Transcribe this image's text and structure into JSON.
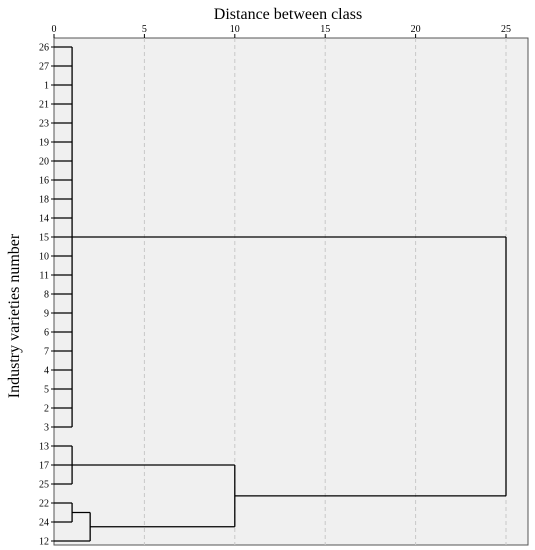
{
  "chart_data": {
    "type": "dendrogram",
    "title": "",
    "xlabel": "Distance between class",
    "ylabel": "Industry varieties number",
    "xlim": [
      0,
      25
    ],
    "xticks": [
      0,
      5,
      10,
      15,
      20,
      25
    ],
    "grid": "vertical dashed",
    "colors": {
      "plot_background": "#f0f0f0",
      "lines": "#000000",
      "grid": "#c8c8c8"
    },
    "leaves": [
      "26",
      "27",
      "1",
      "21",
      "23",
      "19",
      "20",
      "16",
      "18",
      "14",
      "15",
      "10",
      "11",
      "8",
      "9",
      "6",
      "7",
      "4",
      "5",
      "2",
      "3",
      "13",
      "17",
      "25",
      "22",
      "24",
      "12"
    ],
    "clusters": [
      {
        "id": "A",
        "members": [
          "26",
          "27",
          "1",
          "21",
          "23",
          "19",
          "20",
          "16",
          "18",
          "14",
          "15",
          "10",
          "11",
          "8",
          "9",
          "6",
          "7",
          "4",
          "5",
          "2",
          "3"
        ],
        "merge_distance": 1
      },
      {
        "id": "B",
        "members": [
          "13",
          "17",
          "25"
        ],
        "merge_distance": 1
      },
      {
        "id": "C",
        "members": [
          "22",
          "24"
        ],
        "merge_distance": 1
      },
      {
        "id": "D",
        "children": [
          "C",
          "12"
        ],
        "merge_distance": 2
      },
      {
        "id": "E",
        "children": [
          "B",
          "D"
        ],
        "merge_distance": 10
      },
      {
        "id": "F",
        "children": [
          "A",
          "E"
        ],
        "merge_distance": 25
      }
    ]
  }
}
